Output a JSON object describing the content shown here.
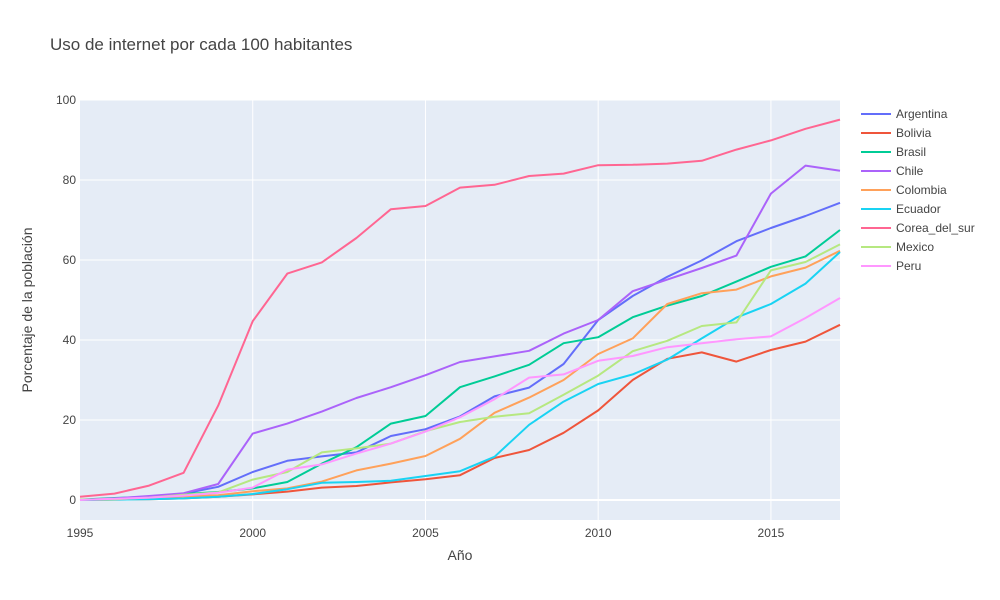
{
  "chart_data": {
    "type": "line",
    "title": "Uso de internet por cada 100 habitantes",
    "xlabel": "Año",
    "ylabel": "Porcentaje de la población",
    "xlim": [
      1995,
      2017
    ],
    "ylim": [
      -5,
      100
    ],
    "xticks": [
      1995,
      2000,
      2005,
      2010,
      2015
    ],
    "yticks": [
      0,
      20,
      40,
      60,
      80,
      100
    ],
    "grid": true,
    "legend_position": "top-right",
    "x": [
      1995,
      1996,
      1997,
      1998,
      1999,
      2000,
      2001,
      2002,
      2003,
      2004,
      2005,
      2006,
      2007,
      2008,
      2009,
      2010,
      2011,
      2012,
      2013,
      2014,
      2015,
      2016,
      2017
    ],
    "series": [
      {
        "name": "Argentina",
        "color": "#636efa",
        "values": [
          0.1,
          0.3,
          0.9,
          1.6,
          3.3,
          7.0,
          9.8,
          10.9,
          11.9,
          16.0,
          17.7,
          20.9,
          25.9,
          28.1,
          34.0,
          45.0,
          51.0,
          55.8,
          59.9,
          64.7,
          68.0,
          71.0,
          74.3
        ]
      },
      {
        "name": "Bolivia",
        "color": "#ef553b",
        "values": [
          0.0,
          0.1,
          0.2,
          0.4,
          0.8,
          1.4,
          2.1,
          3.1,
          3.5,
          4.4,
          5.2,
          6.2,
          10.5,
          12.5,
          16.8,
          22.4,
          30.0,
          35.3,
          36.9,
          34.6,
          37.5,
          39.6,
          43.8
        ]
      },
      {
        "name": "Brasil",
        "color": "#00cc96",
        "values": [
          0.1,
          0.5,
          0.8,
          1.5,
          2.0,
          2.9,
          4.5,
          9.1,
          13.2,
          19.1,
          21.0,
          28.2,
          30.9,
          33.8,
          39.2,
          40.7,
          45.7,
          48.6,
          51.0,
          54.6,
          58.3,
          60.9,
          67.5
        ]
      },
      {
        "name": "Chile",
        "color": "#ab63fa",
        "values": [
          0.0,
          0.4,
          1.0,
          1.7,
          4.0,
          16.6,
          19.1,
          22.1,
          25.5,
          28.2,
          31.2,
          34.5,
          35.9,
          37.3,
          41.6,
          45.0,
          52.2,
          55.1,
          58.0,
          61.1,
          76.6,
          83.6,
          82.3
        ]
      },
      {
        "name": "Colombia",
        "color": "#ffa15a",
        "values": [
          0.1,
          0.2,
          0.5,
          0.9,
          1.2,
          2.2,
          2.9,
          4.6,
          7.4,
          9.1,
          11.0,
          15.3,
          21.8,
          25.6,
          30.0,
          36.5,
          40.4,
          49.0,
          51.7,
          52.6,
          55.9,
          58.1,
          62.3
        ]
      },
      {
        "name": "Ecuador",
        "color": "#19d3f3",
        "values": [
          0.0,
          0.1,
          0.2,
          0.4,
          0.8,
          1.5,
          2.7,
          4.3,
          4.5,
          4.8,
          6.0,
          7.2,
          10.8,
          18.8,
          24.6,
          29.0,
          31.4,
          35.1,
          40.4,
          45.6,
          49.0,
          54.1,
          62.0
        ]
      },
      {
        "name": "Corea_del_sur",
        "color": "#ff6692",
        "values": [
          0.8,
          1.6,
          3.6,
          6.8,
          23.6,
          44.7,
          56.6,
          59.4,
          65.5,
          72.7,
          73.5,
          78.1,
          78.8,
          81.0,
          81.6,
          83.7,
          83.8,
          84.1,
          84.8,
          87.6,
          89.9,
          92.8,
          95.1
        ]
      },
      {
        "name": "Mexico",
        "color": "#b6e880",
        "values": [
          0.1,
          0.2,
          0.6,
          1.3,
          1.9,
          5.1,
          7.0,
          11.9,
          12.9,
          14.1,
          17.2,
          19.5,
          20.8,
          21.7,
          26.3,
          31.1,
          37.2,
          39.8,
          43.5,
          44.4,
          57.4,
          59.5,
          63.9
        ]
      },
      {
        "name": "Peru",
        "color": "#ff97ff",
        "values": [
          0.0,
          0.3,
          0.6,
          1.1,
          1.8,
          3.1,
          7.6,
          8.9,
          11.6,
          14.1,
          17.1,
          20.7,
          25.2,
          30.6,
          31.4,
          34.8,
          36.0,
          38.2,
          39.2,
          40.2,
          40.9,
          45.5,
          50.5
        ]
      }
    ]
  }
}
